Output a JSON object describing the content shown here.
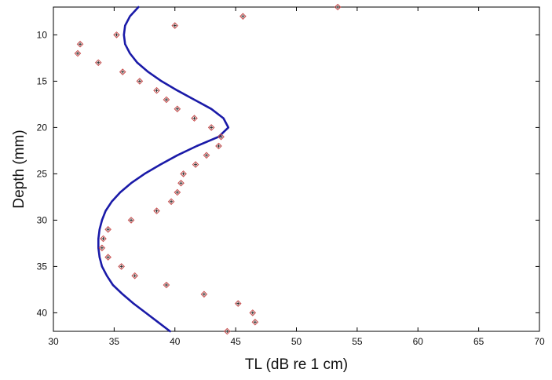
{
  "chart_data": {
    "type": "line",
    "title": "",
    "xlabel": "TL (dB re 1   cm)",
    "ylabel": "Depth (mm)",
    "xlim": [
      30,
      70
    ],
    "ylim": [
      42,
      7
    ],
    "y_axis_reversed": true,
    "grid": false,
    "legend": "none",
    "x_ticks": [
      "30",
      "35",
      "40",
      "45",
      "50",
      "55",
      "60",
      "65",
      "70"
    ],
    "y_ticks": [
      "10",
      "15",
      "20",
      "25",
      "30",
      "35",
      "40"
    ],
    "colors": {
      "curve": "#1a1aa8",
      "marker": "#c94a4a",
      "axes": "#000000"
    },
    "series": [
      {
        "kind": "line",
        "points": [
          [
            37.0,
            7
          ],
          [
            36.3,
            8
          ],
          [
            35.9,
            9
          ],
          [
            35.8,
            10
          ],
          [
            35.9,
            11
          ],
          [
            36.3,
            12
          ],
          [
            36.9,
            13
          ],
          [
            37.8,
            14
          ],
          [
            38.9,
            15
          ],
          [
            40.2,
            16
          ],
          [
            41.6,
            17
          ],
          [
            43.0,
            18
          ],
          [
            44.0,
            19
          ],
          [
            44.4,
            20
          ],
          [
            43.6,
            21
          ],
          [
            41.8,
            22
          ],
          [
            40.2,
            23
          ],
          [
            38.8,
            24
          ],
          [
            37.5,
            25
          ],
          [
            36.4,
            26
          ],
          [
            35.5,
            27
          ],
          [
            34.8,
            28
          ],
          [
            34.3,
            29
          ],
          [
            34.0,
            30
          ],
          [
            33.8,
            31
          ],
          [
            33.7,
            32
          ],
          [
            33.7,
            33
          ],
          [
            33.8,
            34
          ],
          [
            34.0,
            35
          ],
          [
            34.4,
            36
          ],
          [
            34.9,
            37
          ],
          [
            35.7,
            38
          ],
          [
            36.6,
            39
          ],
          [
            37.6,
            40
          ],
          [
            38.6,
            41
          ],
          [
            39.6,
            42
          ]
        ]
      },
      {
        "kind": "scatter",
        "marker": "diamond-plus",
        "points": [
          [
            53.4,
            7
          ],
          [
            45.6,
            8
          ],
          [
            40.0,
            9
          ],
          [
            35.2,
            10
          ],
          [
            32.2,
            11
          ],
          [
            32.0,
            12
          ],
          [
            33.7,
            13
          ],
          [
            35.7,
            14
          ],
          [
            37.1,
            15
          ],
          [
            38.5,
            16
          ],
          [
            39.3,
            17
          ],
          [
            40.2,
            18
          ],
          [
            41.6,
            19
          ],
          [
            43.0,
            20
          ],
          [
            43.8,
            21
          ],
          [
            43.6,
            22
          ],
          [
            42.6,
            23
          ],
          [
            41.7,
            24
          ],
          [
            40.7,
            25
          ],
          [
            40.5,
            26
          ],
          [
            40.2,
            27
          ],
          [
            39.7,
            28
          ],
          [
            38.5,
            29
          ],
          [
            36.4,
            30
          ],
          [
            34.5,
            31
          ],
          [
            34.1,
            32
          ],
          [
            34.0,
            33
          ],
          [
            34.5,
            34
          ],
          [
            35.6,
            35
          ],
          [
            36.7,
            36
          ],
          [
            39.3,
            37
          ],
          [
            42.4,
            38
          ],
          [
            45.2,
            39
          ],
          [
            46.4,
            40
          ],
          [
            46.6,
            41
          ],
          [
            44.3,
            42
          ]
        ]
      }
    ]
  }
}
